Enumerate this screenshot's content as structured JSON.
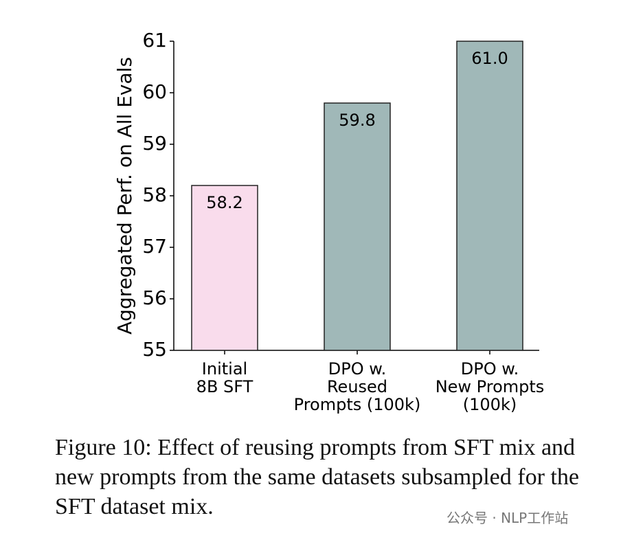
{
  "chart_data": {
    "type": "bar",
    "categories": [
      "Initial\n8B SFT",
      "DPO w.\nReused\nPrompts (100k)",
      "DPO w.\nNew Prompts\n(100k)"
    ],
    "values": [
      58.2,
      59.8,
      61.0
    ],
    "value_labels": [
      "58.2",
      "59.8",
      "61.0"
    ],
    "colors": [
      "#f9dcec",
      "#a0b8b8"
    ],
    "ylabel": "Aggregated Perf. on All Evals",
    "ylim": [
      55,
      61
    ],
    "yticks": [
      55,
      56,
      57,
      58,
      59,
      60,
      61
    ],
    "grid": false
  },
  "caption": "Figure 10:  Effect of reusing prompts from SFT mix and new prompts from the same datasets subsampled for the SFT dataset mix.",
  "watermark": "公众号 · NLP工作站"
}
